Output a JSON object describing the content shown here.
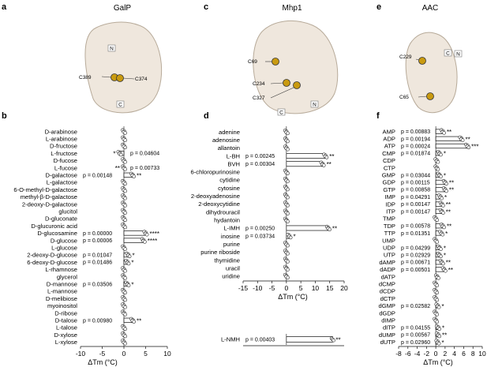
{
  "colors": {
    "bar_fill": "#ffffff",
    "bar_stroke": "#111111",
    "point_fill": "#ffffff"
  },
  "structure_panels": [
    {
      "panel_letter": "a",
      "title": "GalP",
      "labels": [
        "C389",
        "C374",
        "N",
        "C"
      ],
      "colors": [
        "#d9c44a",
        "#d86b39",
        "#7c86c9",
        "#79b86a",
        "#d04b3c"
      ]
    },
    {
      "panel_letter": "c",
      "title": "Mhp1",
      "labels": [
        "C69",
        "C234",
        "C327",
        "N",
        "C"
      ],
      "colors": [
        "#d9c44a",
        "#d86b39",
        "#7c86c9",
        "#79b86a",
        "#d04b3c"
      ]
    },
    {
      "panel_letter": "e",
      "title": "AAC",
      "labels": [
        "C229",
        "C65",
        "C",
        "N"
      ],
      "colors": [
        "#d9c44a",
        "#d86b39",
        "#7c86c9",
        "#79b86a",
        "#d04b3c"
      ]
    }
  ],
  "chart_data": [
    {
      "type": "bar",
      "orientation": "horizontal",
      "panel_letter": "b",
      "xlabel": "ΔTm (°C)",
      "xlim": [
        -10,
        10
      ],
      "xticks": [
        -10,
        -5,
        0,
        5,
        10
      ],
      "xtick_labels": [
        "-10",
        "-5",
        "0",
        "5",
        "10"
      ],
      "categories": [
        "D-arabinose",
        "L-arabinose",
        "D-fructose",
        "L-fructose",
        "D-fucose",
        "L-fucose",
        "D-galactose",
        "L-galactose",
        "6-O-methyl-D-galactose",
        "methyl-β-D-galactose",
        "2-deoxy-D-galactose",
        "glucitol",
        "D-gluconate",
        "D-glucuronic acid",
        "D-glucosamine",
        "D-glucose",
        "L-glucose",
        "2-deoxy-D-glucose",
        "6-deoxy-D-glucose",
        "L-rhamnose",
        "glycerol",
        "D-mannose",
        "L-mannose",
        "D-melibiose",
        "myoinositol",
        "D-ribose",
        "D-talose",
        "L-talose",
        "D-xylose",
        "L-xylose"
      ],
      "values": [
        0,
        0,
        0,
        -1,
        0,
        0,
        2,
        0,
        0,
        0,
        0,
        0,
        0,
        0,
        5,
        4.5,
        0,
        1,
        0.8,
        0,
        0,
        0.8,
        0,
        0,
        0,
        0,
        2,
        0,
        0,
        0
      ],
      "pvalues": [
        "",
        "",
        "",
        "p = 0.04604",
        "",
        "p = 0.00733",
        "p = 0.00148",
        "",
        "",
        "",
        "",
        "",
        "",
        "",
        "p = 0.00000",
        "p = 0.00006",
        "",
        "p = 0.01047",
        "p = 0.01486",
        "",
        "",
        "p = 0.03506",
        "",
        "",
        "",
        "",
        "p = 0.00980",
        "",
        "",
        ""
      ],
      "pvalue_side": [
        "",
        "",
        "",
        "right",
        "",
        "right",
        "left",
        "",
        "",
        "",
        "",
        "",
        "",
        "",
        "left",
        "left",
        "",
        "left",
        "left",
        "",
        "",
        "left",
        "",
        "",
        "",
        "",
        "left",
        "",
        "",
        ""
      ],
      "stars": [
        "",
        "",
        "",
        "*",
        "",
        "**",
        "**",
        "",
        "",
        "",
        "",
        "",
        "",
        "",
        "****",
        "****",
        "",
        "*",
        "*",
        "",
        "",
        "*",
        "",
        "",
        "",
        "",
        "**",
        "",
        "",
        ""
      ],
      "star_side": [
        "",
        "",
        "",
        "left",
        "",
        "left",
        "right",
        "",
        "",
        "",
        "",
        "",
        "",
        "",
        "right",
        "right",
        "",
        "right",
        "right",
        "",
        "",
        "right",
        "",
        "",
        "",
        "",
        "right",
        "",
        "",
        ""
      ]
    },
    {
      "type": "bar",
      "orientation": "horizontal",
      "panel_letter": "d",
      "xlabel": "ΔTm (°C)",
      "xlim": [
        -15,
        20
      ],
      "xticks": [
        -15,
        -10,
        -5,
        0,
        5,
        10,
        15,
        20
      ],
      "xtick_labels": [
        "-15",
        "-10",
        "-5",
        "0",
        "5",
        "10",
        "15",
        "20"
      ],
      "categories": [
        "adenine",
        "adenosine",
        "allantoin",
        "L-BH",
        "BVH",
        "6-chloropurinosine",
        "cytidine",
        "cytosine",
        "2-deoxyadenosine",
        "2-deoxycytidine",
        "dihydrouracil",
        "hydantoin",
        "L-IMH",
        "inosine",
        "purine",
        "purine riboside",
        "thymidine",
        "uracil",
        "uridine"
      ],
      "values": [
        0,
        0,
        0,
        13.5,
        12.5,
        0,
        0,
        0,
        0,
        0,
        0,
        0,
        14.5,
        1,
        0,
        0,
        0,
        0,
        0
      ],
      "pvalues": [
        "",
        "",
        "",
        "p = 0.00245",
        "p = 0.00304",
        "",
        "",
        "",
        "",
        "",
        "",
        "",
        "p = 0.00250",
        "p = 0.03734",
        "",
        "",
        "",
        "",
        ""
      ],
      "stars": [
        "",
        "",
        "",
        "**",
        "**",
        "",
        "",
        "",
        "",
        "",
        "",
        "",
        "**",
        "*",
        "",
        "",
        "",
        "",
        ""
      ],
      "inset": {
        "categories": [
          "L-NMH"
        ],
        "values": [
          16
        ],
        "pvalues": [
          "p = 0.00403"
        ],
        "stars": [
          "**"
        ]
      }
    },
    {
      "type": "bar",
      "orientation": "horizontal",
      "panel_letter": "f",
      "xlabel": "ΔTm (°C)",
      "xlim": [
        -8,
        10
      ],
      "xticks": [
        -8,
        -6,
        -4,
        -2,
        0,
        2,
        4,
        6,
        8,
        10
      ],
      "xtick_labels": [
        "-8",
        "-6",
        "-4",
        "-2",
        "0",
        "2",
        "4",
        "6",
        "8",
        "10"
      ],
      "categories": [
        "AMP",
        "ADP",
        "ATP",
        "CMP",
        "CDP",
        "CTP",
        "GMP",
        "GDP",
        "GTP",
        "IMP",
        "IDP",
        "ITP",
        "TMP",
        "TDP",
        "TTP",
        "UMP",
        "UDP",
        "UTP",
        "dAMP",
        "dADP",
        "dATP",
        "dCMP",
        "dCDP",
        "dCTP",
        "dGMP",
        "dGDP",
        "dIMP",
        "dITP",
        "dUMP",
        "dUTP"
      ],
      "values": [
        1.5,
        5.5,
        6.8,
        0.8,
        0.2,
        0.2,
        0.8,
        2,
        2,
        1,
        1.3,
        1.3,
        0,
        1.5,
        1.2,
        0,
        0.8,
        0.8,
        1.3,
        1.8,
        0.3,
        0,
        0,
        0,
        0.4,
        0,
        0,
        0.5,
        0.5,
        0.4
      ],
      "pvalues": [
        "p = 0.00883",
        "p = 0.00194",
        "p = 0.00024",
        "p = 0.01874",
        "",
        "",
        "p = 0.03044",
        "p = 0.00115",
        "p = 0.00858",
        "p = 0.04291",
        "p = 0.00147",
        "p = 0.00147",
        "",
        "p = 0.00578",
        "p = 0.01351",
        "",
        "p = 0.04299",
        "p = 0.02929",
        "p = 0.00671",
        "p = 0.00501",
        "",
        "",
        "",
        "",
        "p = 0.02582",
        "",
        "",
        "p = 0.04155",
        "p = 0.00567",
        "p = 0.02960"
      ],
      "stars": [
        "**",
        "**",
        "***",
        "*",
        "",
        "",
        "*",
        "**",
        "**",
        "*",
        "**",
        "**",
        "",
        "**",
        "*",
        "",
        "*",
        "*",
        "**",
        "**",
        "",
        "",
        "",
        "",
        "*",
        "",
        "",
        "*",
        "**",
        "*"
      ]
    }
  ]
}
